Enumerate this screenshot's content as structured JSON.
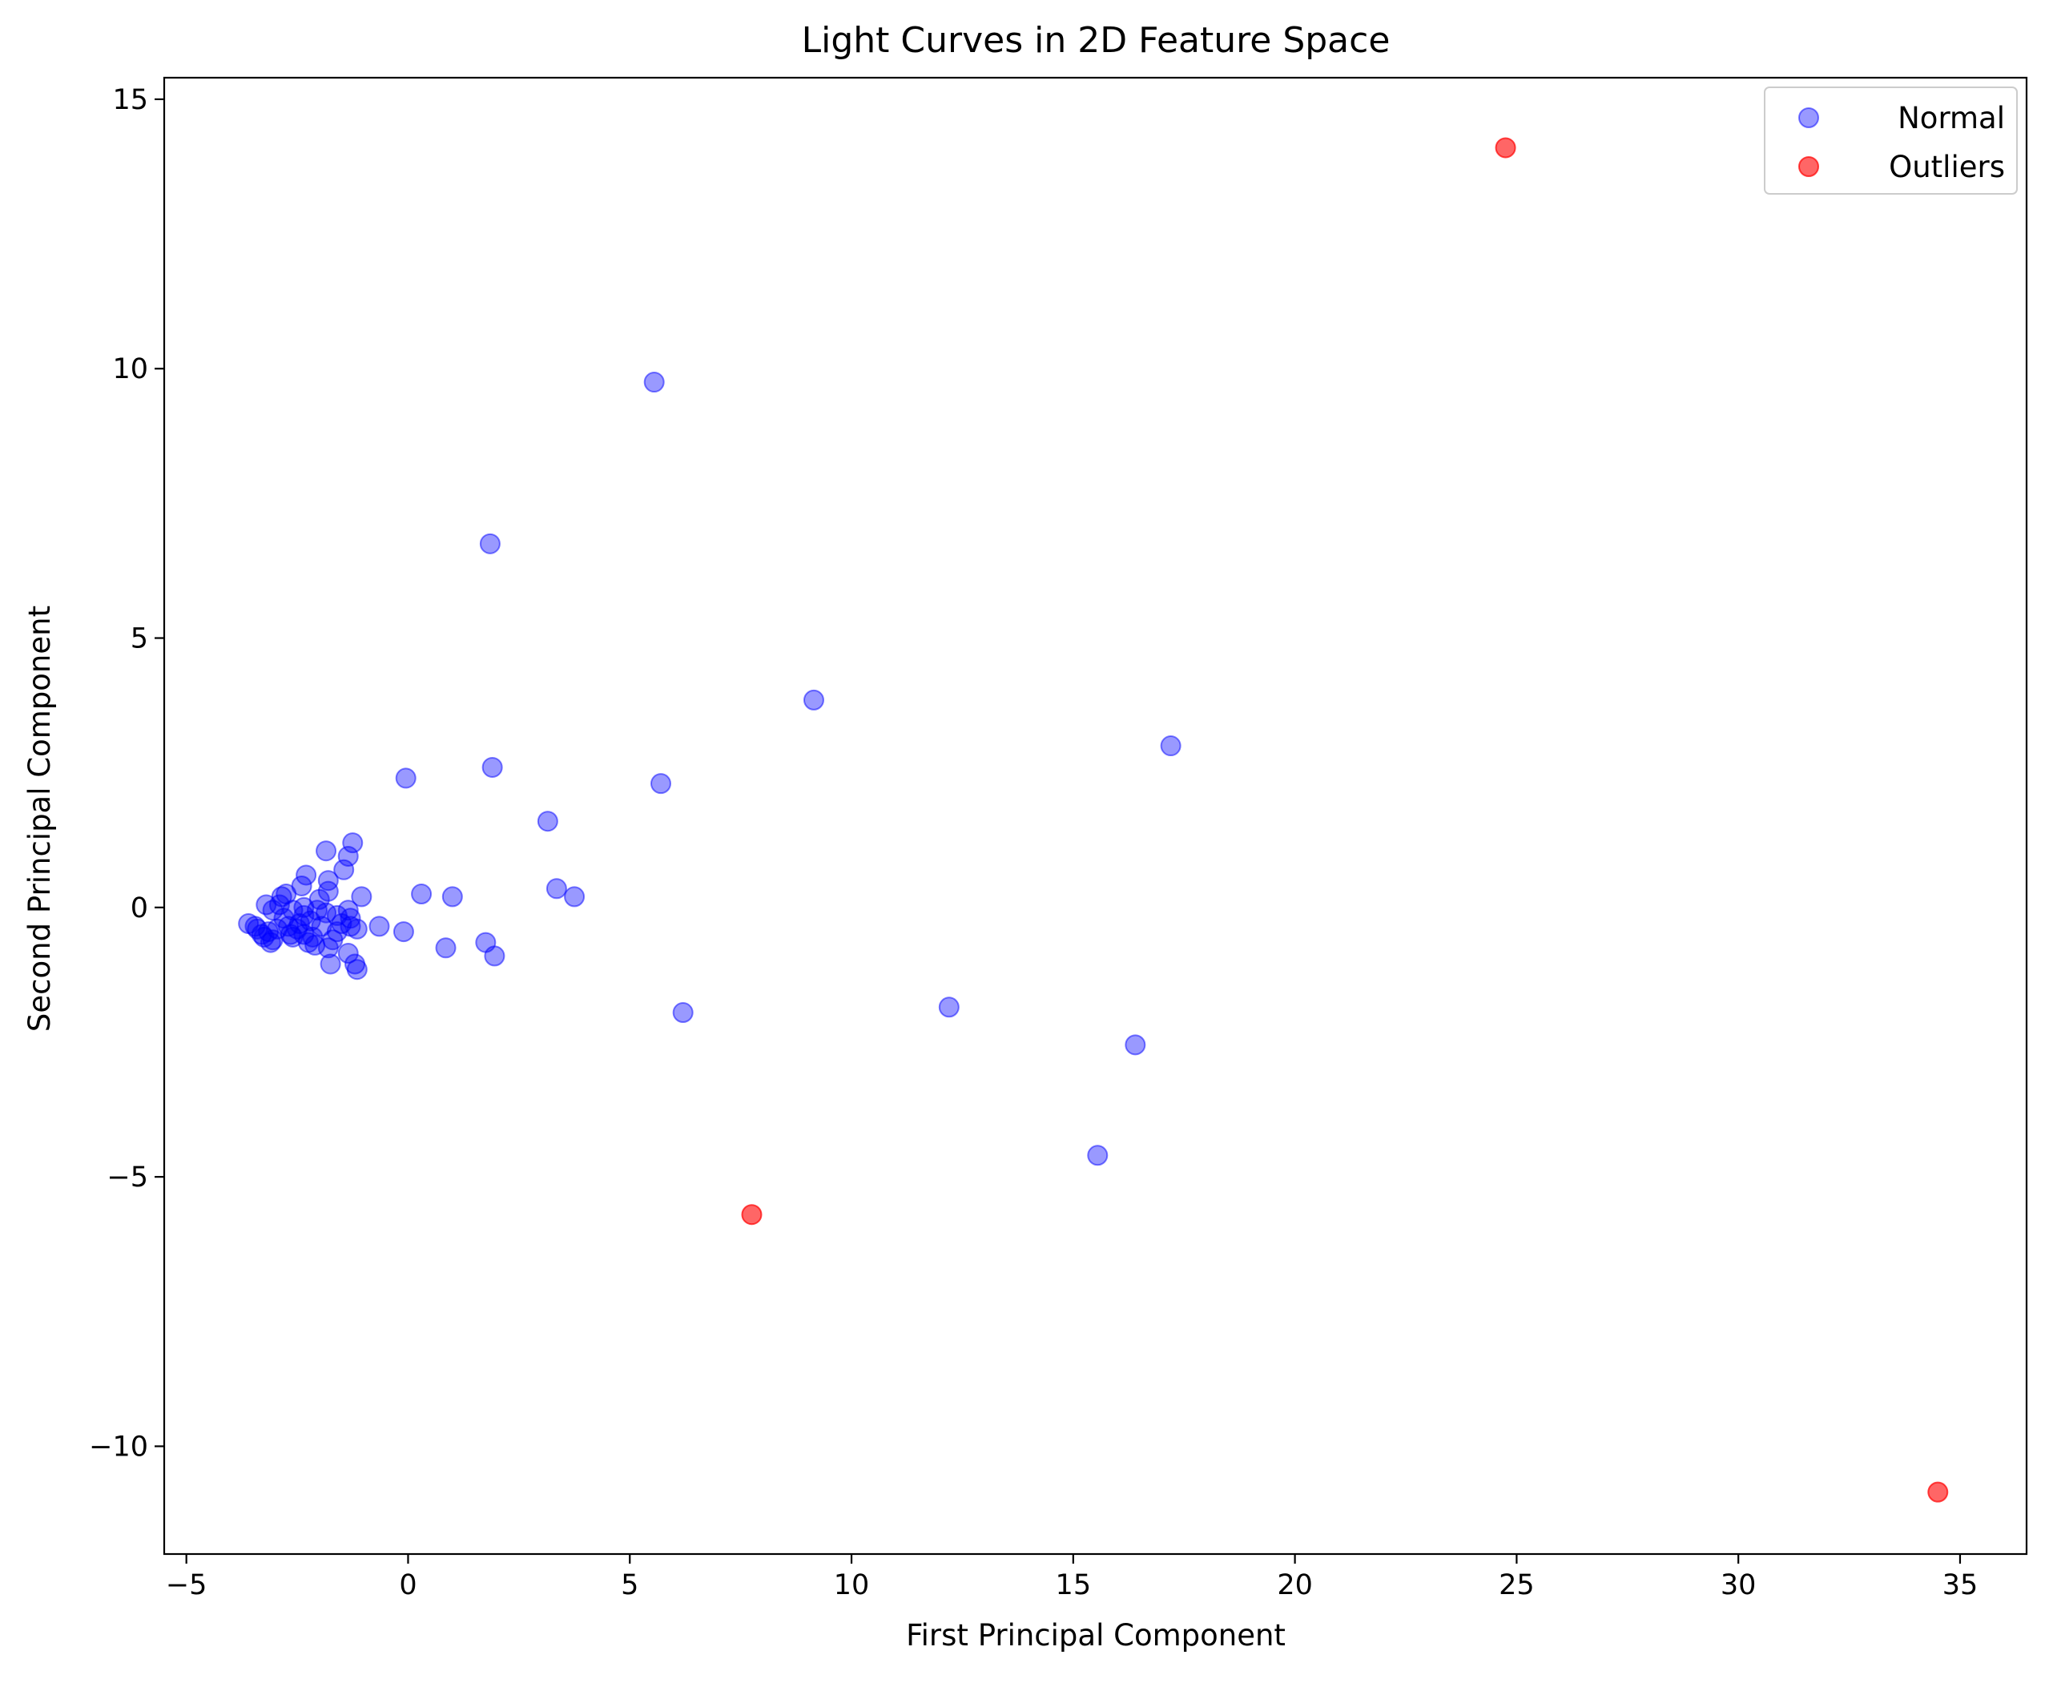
{
  "chart_data": {
    "type": "scatter",
    "title": "Light Curves in 2D Feature Space",
    "xlabel": "First Principal Component",
    "ylabel": "Second Principal Component",
    "xlim": [
      -5.5,
      36.5
    ],
    "ylim": [
      -12,
      15.4
    ],
    "xticks": [
      -5,
      0,
      5,
      10,
      15,
      20,
      25,
      30,
      35
    ],
    "yticks": [
      -10,
      -5,
      0,
      5,
      10,
      15
    ],
    "xtick_labels": [
      "−5",
      "0",
      "5",
      "10",
      "15",
      "20",
      "25",
      "30",
      "35"
    ],
    "ytick_labels": [
      "−10",
      "−5",
      "0",
      "5",
      "10",
      "15"
    ],
    "grid": false,
    "legend_position": "top-right",
    "series": [
      {
        "name": "Normal",
        "color": "#0000ff",
        "alpha": 0.4,
        "points": [
          [
            5.55,
            9.75
          ],
          [
            1.85,
            6.75
          ],
          [
            9.15,
            3.85
          ],
          [
            17.2,
            3.0
          ],
          [
            1.9,
            2.6
          ],
          [
            5.7,
            2.3
          ],
          [
            -0.05,
            2.4
          ],
          [
            3.15,
            1.6
          ],
          [
            3.35,
            0.35
          ],
          [
            3.75,
            0.2
          ],
          [
            0.3,
            0.25
          ],
          [
            1.0,
            0.2
          ],
          [
            -1.05,
            0.2
          ],
          [
            -0.65,
            -0.35
          ],
          [
            -0.1,
            -0.45
          ],
          [
            0.85,
            -0.75
          ],
          [
            1.75,
            -0.65
          ],
          [
            1.95,
            -0.9
          ],
          [
            6.2,
            -1.95
          ],
          [
            12.2,
            -1.85
          ],
          [
            16.4,
            -2.55
          ],
          [
            15.55,
            -4.6
          ],
          [
            -1.25,
            1.2
          ],
          [
            -1.35,
            0.95
          ],
          [
            -1.85,
            1.05
          ],
          [
            -1.45,
            0.7
          ],
          [
            -2.3,
            0.6
          ],
          [
            -1.8,
            0.5
          ],
          [
            -2.4,
            0.4
          ],
          [
            -1.8,
            0.3
          ],
          [
            -2.0,
            0.15
          ],
          [
            -2.75,
            0.25
          ],
          [
            -2.85,
            0.2
          ],
          [
            -3.2,
            0.05
          ],
          [
            -2.9,
            0.05
          ],
          [
            -3.05,
            -0.05
          ],
          [
            -2.6,
            -0.05
          ],
          [
            -2.35,
            0.0
          ],
          [
            -2.05,
            -0.05
          ],
          [
            -1.85,
            -0.1
          ],
          [
            -1.6,
            -0.15
          ],
          [
            -1.35,
            -0.05
          ],
          [
            -1.3,
            -0.2
          ],
          [
            -1.5,
            -0.3
          ],
          [
            -1.3,
            -0.35
          ],
          [
            -1.15,
            -0.4
          ],
          [
            -2.2,
            -0.25
          ],
          [
            -2.45,
            -0.3
          ],
          [
            -2.7,
            -0.35
          ],
          [
            -2.95,
            -0.4
          ],
          [
            -3.15,
            -0.45
          ],
          [
            -3.3,
            -0.5
          ],
          [
            -3.4,
            -0.4
          ],
          [
            -3.6,
            -0.3
          ],
          [
            -3.45,
            -0.35
          ],
          [
            -3.25,
            -0.55
          ],
          [
            -3.1,
            -0.65
          ],
          [
            -3.05,
            -0.6
          ],
          [
            -2.6,
            -0.55
          ],
          [
            -2.35,
            -0.5
          ],
          [
            -2.15,
            -0.55
          ],
          [
            -2.1,
            -0.7
          ],
          [
            -2.25,
            -0.65
          ],
          [
            -1.7,
            -0.6
          ],
          [
            -1.6,
            -0.45
          ],
          [
            -1.8,
            -0.75
          ],
          [
            -1.35,
            -0.85
          ],
          [
            -1.75,
            -1.05
          ],
          [
            -1.2,
            -1.05
          ],
          [
            -1.15,
            -1.15
          ],
          [
            -2.5,
            -0.4
          ],
          [
            -2.8,
            -0.2
          ],
          [
            -1.95,
            -0.35
          ],
          [
            -2.35,
            -0.15
          ],
          [
            -2.65,
            -0.5
          ]
        ]
      },
      {
        "name": "Outliers",
        "color": "#ff0000",
        "alpha": 0.6,
        "points": [
          [
            24.75,
            14.1
          ],
          [
            7.75,
            -5.7
          ],
          [
            34.5,
            -10.85
          ]
        ]
      }
    ]
  }
}
